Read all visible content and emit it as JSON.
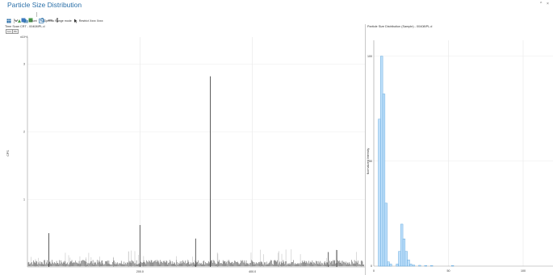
{
  "window": {
    "title": "Particle Size Distribution",
    "controls": [
      "^",
      "×"
    ]
  },
  "toolbar": {
    "row2": [
      {
        "icon": "table-icon",
        "label": ""
      },
      {
        "icon": "export-icon",
        "label": ""
      },
      {
        "icon": "chart-icon",
        "label": "Count"
      },
      {
        "icon": "range-icon",
        "label": "Specific Range mode"
      },
      {
        "icon": "cursor-icon",
        "label": "Restrict Xxxx Xxxx"
      }
    ]
  },
  "left_panel": {
    "header": "Time Scan CRT - 00408IPL.d",
    "buttons": [
      "Ion",
      "Pk"
    ],
    "y_exponent": "x10^4"
  },
  "right_panel": {
    "header": "Particle Size Distribution (Sample) - 00408IPL.d"
  },
  "colors": {
    "title": "#2a6fa8",
    "bar_fill": "#bfe0fb",
    "bar_stroke": "#4d9bd6",
    "spectrum": "#333333"
  },
  "chart_data": [
    {
      "type": "line",
      "xlabel": "",
      "ylabel": "CPS",
      "xlim": [
        0,
        600
      ],
      "ylim": [
        0,
        3.4
      ],
      "x_ticks": [
        200,
        400
      ],
      "y_ticks": [
        1,
        2,
        3
      ],
      "grid": true,
      "baseline": 0.07,
      "peaks": [
        {
          "x": 38,
          "y": 0.5
        },
        {
          "x": 200,
          "y": 0.62
        },
        {
          "x": 299,
          "y": 0.42
        },
        {
          "x": 325,
          "y": 2.82
        },
        {
          "x": 535,
          "y": 0.22
        },
        {
          "x": 550,
          "y": 0.25
        }
      ]
    },
    {
      "type": "bar",
      "xlabel": "",
      "ylabel": "Normalized Intensity",
      "xlim": [
        0,
        120
      ],
      "ylim": [
        0,
        100
      ],
      "x_ticks": [
        0,
        50,
        100
      ],
      "y_ticks": [
        0,
        50,
        100
      ],
      "grid": true,
      "bin_width": 1.5,
      "bins": [
        {
          "x": 3.0,
          "value": 70
        },
        {
          "x": 4.5,
          "value": 100
        },
        {
          "x": 6.0,
          "value": 82
        },
        {
          "x": 7.5,
          "value": 30
        },
        {
          "x": 9.0,
          "value": 2
        },
        {
          "x": 10.5,
          "value": 1
        },
        {
          "x": 15.0,
          "value": 1
        },
        {
          "x": 16.5,
          "value": 7
        },
        {
          "x": 18.0,
          "value": 20
        },
        {
          "x": 19.5,
          "value": 13
        },
        {
          "x": 21.0,
          "value": 7
        },
        {
          "x": 22.5,
          "value": 3
        },
        {
          "x": 24.0,
          "value": 1
        },
        {
          "x": 26.0,
          "value": 0.5
        },
        {
          "x": 30.0,
          "value": 0.4
        },
        {
          "x": 34.0,
          "value": 0.3
        },
        {
          "x": 38.0,
          "value": 0.3
        },
        {
          "x": 52.0,
          "value": 0.3
        }
      ]
    }
  ]
}
